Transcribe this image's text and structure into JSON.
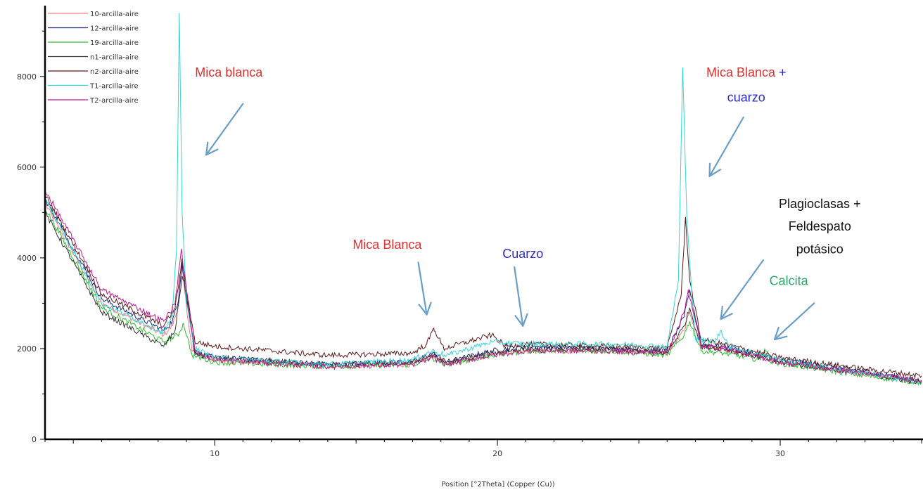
{
  "chart_data": {
    "type": "line",
    "title": "",
    "xlabel": "Position [°2Theta] (Copper (Cu))",
    "ylabel": "",
    "xlim": [
      4,
      35
    ],
    "ylim": [
      0,
      9500
    ],
    "x_ticks": [
      10,
      20,
      30
    ],
    "y_ticks": [
      0,
      2000,
      4000,
      6000,
      8000
    ],
    "grid": false,
    "legend_position": "top-left",
    "series": [
      {
        "name": "10-arcilla-aire",
        "color": "#f08080",
        "points": [
          [
            4,
            5200
          ],
          [
            6,
            3000
          ],
          [
            8.2,
            2300
          ],
          [
            8.5,
            2500
          ],
          [
            8.7,
            2900
          ],
          [
            8.82,
            3900
          ],
          [
            8.95,
            3200
          ],
          [
            9.2,
            1950
          ],
          [
            10,
            1750
          ],
          [
            14,
            1620
          ],
          [
            17,
            1650
          ],
          [
            17.7,
            1850
          ],
          [
            18.2,
            1680
          ],
          [
            19.8,
            1900
          ],
          [
            21,
            1950
          ],
          [
            24,
            1950
          ],
          [
            26,
            1900
          ],
          [
            26.6,
            2400
          ],
          [
            26.8,
            2800
          ],
          [
            27.2,
            2050
          ],
          [
            28,
            2000
          ],
          [
            30,
            1700
          ],
          [
            33,
            1450
          ],
          [
            35,
            1300
          ]
        ]
      },
      {
        "name": "12-arcilla-aire",
        "color": "#1a237e",
        "points": [
          [
            4,
            5300
          ],
          [
            6,
            3100
          ],
          [
            8.2,
            2400
          ],
          [
            8.5,
            2600
          ],
          [
            8.7,
            3000
          ],
          [
            8.85,
            3900
          ],
          [
            9,
            3100
          ],
          [
            9.3,
            1900
          ],
          [
            10,
            1800
          ],
          [
            14,
            1650
          ],
          [
            17,
            1700
          ],
          [
            17.7,
            1900
          ],
          [
            18.2,
            1700
          ],
          [
            19.8,
            1950
          ],
          [
            21,
            2050
          ],
          [
            24,
            2000
          ],
          [
            26,
            1950
          ],
          [
            26.6,
            2700
          ],
          [
            26.8,
            3300
          ],
          [
            27.2,
            2100
          ],
          [
            28,
            2050
          ],
          [
            30,
            1750
          ],
          [
            33,
            1500
          ],
          [
            35,
            1280
          ]
        ]
      },
      {
        "name": "19-arcilla-aire",
        "color": "#2ebd2e",
        "points": [
          [
            4,
            5100
          ],
          [
            6,
            2900
          ],
          [
            8.2,
            2150
          ],
          [
            8.7,
            2300
          ],
          [
            8.9,
            2550
          ],
          [
            9.2,
            1850
          ],
          [
            10,
            1700
          ],
          [
            14,
            1600
          ],
          [
            17,
            1650
          ],
          [
            17.7,
            1780
          ],
          [
            18.2,
            1650
          ],
          [
            19.8,
            1850
          ],
          [
            21,
            1950
          ],
          [
            24,
            1950
          ],
          [
            26,
            1850
          ],
          [
            26.6,
            2300
          ],
          [
            26.8,
            2600
          ],
          [
            27.2,
            1950
          ],
          [
            28,
            1900
          ],
          [
            29.3,
            1750
          ],
          [
            29.45,
            2000
          ],
          [
            29.7,
            1700
          ],
          [
            33,
            1400
          ],
          [
            35,
            1250
          ]
        ]
      },
      {
        "name": "n1-arcilla-aire",
        "color": "#333333",
        "points": [
          [
            4,
            5000
          ],
          [
            6,
            2800
          ],
          [
            8.2,
            2050
          ],
          [
            8.6,
            2400
          ],
          [
            8.85,
            3600
          ],
          [
            9,
            3200
          ],
          [
            9.3,
            1900
          ],
          [
            10,
            1800
          ],
          [
            14,
            1650
          ],
          [
            17,
            1700
          ],
          [
            17.7,
            1850
          ],
          [
            18.2,
            1700
          ],
          [
            19.8,
            1900
          ],
          [
            21,
            2000
          ],
          [
            24,
            2000
          ],
          [
            26,
            1900
          ],
          [
            26.6,
            2500
          ],
          [
            26.8,
            2900
          ],
          [
            27.2,
            2050
          ],
          [
            28,
            2000
          ],
          [
            30,
            1700
          ],
          [
            33,
            1450
          ],
          [
            35,
            1250
          ]
        ]
      },
      {
        "name": "n2-arcilla-aire",
        "color": "#5a1a1a",
        "points": [
          [
            4,
            5400
          ],
          [
            6,
            3200
          ],
          [
            8.2,
            2500
          ],
          [
            8.6,
            2900
          ],
          [
            8.85,
            3950
          ],
          [
            9,
            3300
          ],
          [
            9.3,
            2150
          ],
          [
            10,
            2050
          ],
          [
            14,
            1850
          ],
          [
            17,
            1900
          ],
          [
            17.5,
            2100
          ],
          [
            17.75,
            2450
          ],
          [
            18.1,
            2000
          ],
          [
            19.8,
            2300
          ],
          [
            20.3,
            2050
          ],
          [
            21,
            2100
          ],
          [
            24,
            2050
          ],
          [
            26,
            2000
          ],
          [
            26.5,
            3200
          ],
          [
            26.65,
            4900
          ],
          [
            26.8,
            3500
          ],
          [
            27.2,
            2200
          ],
          [
            28,
            2100
          ],
          [
            30,
            1800
          ],
          [
            33,
            1550
          ],
          [
            35,
            1400
          ]
        ]
      },
      {
        "name": "T1-arcilla-aire",
        "color": "#33d6d6",
        "points": [
          [
            4,
            5300
          ],
          [
            6,
            3000
          ],
          [
            8.2,
            2350
          ],
          [
            8.5,
            2700
          ],
          [
            8.65,
            4200
          ],
          [
            8.75,
            9400
          ],
          [
            8.85,
            5000
          ],
          [
            9,
            3000
          ],
          [
            9.3,
            2000
          ],
          [
            10,
            1800
          ],
          [
            14,
            1650
          ],
          [
            17,
            1750
          ],
          [
            17.7,
            1950
          ],
          [
            18.2,
            1850
          ],
          [
            19.8,
            2150
          ],
          [
            21,
            2100
          ],
          [
            24,
            2100
          ],
          [
            26,
            2050
          ],
          [
            26.4,
            3500
          ],
          [
            26.55,
            8200
          ],
          [
            26.7,
            4800
          ],
          [
            27,
            2200
          ],
          [
            27.7,
            2150
          ],
          [
            27.9,
            2400
          ],
          [
            28.2,
            2050
          ],
          [
            30,
            1750
          ],
          [
            33,
            1450
          ],
          [
            35,
            1250
          ]
        ]
      },
      {
        "name": "T2-arcilla-aire",
        "color": "#c2198f",
        "points": [
          [
            4,
            5500
          ],
          [
            6,
            3300
          ],
          [
            8.2,
            2600
          ],
          [
            8.6,
            3000
          ],
          [
            8.82,
            4200
          ],
          [
            9,
            3300
          ],
          [
            9.3,
            1950
          ],
          [
            10,
            1750
          ],
          [
            14,
            1600
          ],
          [
            17,
            1650
          ],
          [
            17.7,
            1800
          ],
          [
            18.2,
            1650
          ],
          [
            19.8,
            1850
          ],
          [
            21,
            1950
          ],
          [
            24,
            1950
          ],
          [
            26,
            1900
          ],
          [
            26.6,
            2800
          ],
          [
            26.75,
            3300
          ],
          [
            27.2,
            2050
          ],
          [
            28,
            2000
          ],
          [
            30,
            1700
          ],
          [
            33,
            1450
          ],
          [
            35,
            1300
          ]
        ]
      }
    ],
    "annotations": [
      {
        "segments": [
          {
            "text": "Mica blanca",
            "color": "#e03030"
          }
        ],
        "at": [
          10.5,
          8000
        ]
      },
      {
        "segments": [
          {
            "text": "Mica Blanca",
            "color": "#e03030"
          },
          {
            "text": " +",
            "color": "#2b2bc8"
          }
        ],
        "at": [
          28.8,
          8000
        ]
      },
      {
        "segments": [
          {
            "text": "cuarzo",
            "color": "#2b2bc8"
          }
        ],
        "at": [
          28.8,
          7450
        ]
      },
      {
        "segments": [
          {
            "text": "Mica Blanca",
            "color": "#e03030"
          }
        ],
        "at": [
          16.1,
          4200
        ]
      },
      {
        "segments": [
          {
            "text": "Cuarzo",
            "color": "#2b2bc8"
          }
        ],
        "at": [
          20.9,
          4000
        ]
      },
      {
        "segments": [
          {
            "text": "Plagioclasas +",
            "color": "#111111"
          }
        ],
        "at": [
          31.4,
          5100
        ]
      },
      {
        "segments": [
          {
            "text": "Feldespato",
            "color": "#111111"
          }
        ],
        "at": [
          31.4,
          4600
        ]
      },
      {
        "segments": [
          {
            "text": "potásico",
            "color": "#111111"
          }
        ],
        "at": [
          31.4,
          4100
        ]
      },
      {
        "segments": [
          {
            "text": "Calcita",
            "color": "#2ea86a"
          }
        ],
        "at": [
          30.3,
          3400
        ]
      }
    ],
    "arrows": [
      {
        "from": [
          11.0,
          7400
        ],
        "to": [
          9.7,
          6270
        ],
        "color": "#6a9ec8"
      },
      {
        "from": [
          28.7,
          7100
        ],
        "to": [
          27.5,
          5800
        ],
        "color": "#6a9ec8"
      },
      {
        "from": [
          17.2,
          3900
        ],
        "to": [
          17.5,
          2750
        ],
        "color": "#6a9ec8"
      },
      {
        "from": [
          20.6,
          3800
        ],
        "to": [
          20.9,
          2500
        ],
        "color": "#6a9ec8"
      },
      {
        "from": [
          29.4,
          3950
        ],
        "to": [
          27.9,
          2650
        ],
        "color": "#6a9ec8"
      },
      {
        "from": [
          31.2,
          3000
        ],
        "to": [
          29.8,
          2200
        ],
        "color": "#6a9ec8"
      }
    ]
  }
}
